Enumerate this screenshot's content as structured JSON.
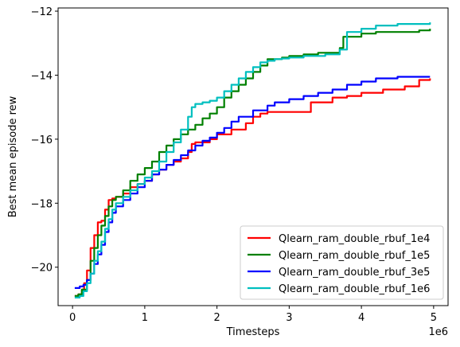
{
  "chart_data": {
    "type": "line",
    "title": "",
    "xlabel": "Timesteps",
    "ylabel": "Best mean episode rew",
    "x_offset_label": "1e6",
    "xlim": [
      -0.2,
      5.2
    ],
    "ylim": [
      -21.2,
      -11.9
    ],
    "x_ticks": [
      0,
      1,
      2,
      3,
      4,
      5
    ],
    "x_tick_labels": [
      "0",
      "1",
      "2",
      "3",
      "4",
      "5"
    ],
    "y_ticks": [
      -20,
      -18,
      -16,
      -14,
      -12
    ],
    "y_tick_labels": [
      "−20",
      "−18",
      "−16",
      "−14",
      "−12"
    ],
    "grid": false,
    "legend_position": "bottom-right",
    "series": [
      {
        "name": "Qlearn_ram_double_rbuf_1e4",
        "color": "#ff0000",
        "x": [
          0.03,
          0.08,
          0.13,
          0.16,
          0.2,
          0.25,
          0.3,
          0.35,
          0.4,
          0.45,
          0.5,
          0.55,
          0.6,
          0.7,
          0.8,
          0.9,
          1.0,
          1.1,
          1.2,
          1.3,
          1.4,
          1.5,
          1.6,
          1.65,
          1.7,
          1.9,
          2.0,
          2.2,
          2.4,
          2.5,
          2.6,
          2.7,
          3.0,
          3.3,
          3.6,
          3.8,
          4.0,
          4.3,
          4.6,
          4.8,
          4.95
        ],
        "y": [
          -20.9,
          -20.85,
          -20.7,
          -20.5,
          -20.1,
          -19.4,
          -19.0,
          -18.6,
          -18.55,
          -18.2,
          -17.9,
          -17.85,
          -17.8,
          -17.7,
          -17.5,
          -17.4,
          -17.3,
          -17.1,
          -16.95,
          -16.8,
          -16.7,
          -16.6,
          -16.4,
          -16.15,
          -16.1,
          -16.0,
          -15.85,
          -15.7,
          -15.5,
          -15.3,
          -15.2,
          -15.15,
          -15.15,
          -14.85,
          -14.7,
          -14.65,
          -14.55,
          -14.45,
          -14.35,
          -14.15,
          -14.1
        ]
      },
      {
        "name": "Qlearn_ram_double_rbuf_1e5",
        "color": "#008000",
        "x": [
          0.03,
          0.08,
          0.13,
          0.2,
          0.25,
          0.3,
          0.35,
          0.4,
          0.45,
          0.5,
          0.55,
          0.6,
          0.7,
          0.8,
          0.9,
          1.0,
          1.1,
          1.2,
          1.3,
          1.4,
          1.5,
          1.6,
          1.7,
          1.8,
          1.9,
          2.0,
          2.1,
          2.2,
          2.3,
          2.4,
          2.5,
          2.6,
          2.7,
          2.9,
          3.0,
          3.2,
          3.4,
          3.7,
          3.75,
          4.0,
          4.2,
          4.5,
          4.8,
          4.95
        ],
        "y": [
          -20.9,
          -20.85,
          -20.7,
          -20.4,
          -19.8,
          -19.4,
          -19.0,
          -18.7,
          -18.4,
          -18.1,
          -17.9,
          -17.8,
          -17.6,
          -17.3,
          -17.1,
          -16.9,
          -16.7,
          -16.4,
          -16.2,
          -16.0,
          -15.85,
          -15.7,
          -15.55,
          -15.35,
          -15.2,
          -15.0,
          -14.7,
          -14.5,
          -14.3,
          -14.1,
          -13.9,
          -13.7,
          -13.5,
          -13.45,
          -13.4,
          -13.35,
          -13.3,
          -13.15,
          -12.8,
          -12.7,
          -12.65,
          -12.65,
          -12.6,
          -12.55
        ]
      },
      {
        "name": "Qlearn_ram_double_rbuf_3e5",
        "color": "#0000ff",
        "x": [
          0.03,
          0.1,
          0.15,
          0.2,
          0.25,
          0.3,
          0.35,
          0.4,
          0.45,
          0.5,
          0.55,
          0.6,
          0.7,
          0.8,
          0.9,
          1.0,
          1.1,
          1.2,
          1.3,
          1.4,
          1.5,
          1.6,
          1.7,
          1.8,
          1.9,
          2.0,
          2.1,
          2.2,
          2.3,
          2.5,
          2.7,
          2.8,
          3.0,
          3.2,
          3.4,
          3.6,
          3.8,
          4.0,
          4.2,
          4.5,
          4.8,
          4.95
        ],
        "y": [
          -20.65,
          -20.6,
          -20.55,
          -20.4,
          -20.2,
          -19.9,
          -19.6,
          -19.3,
          -18.9,
          -18.6,
          -18.3,
          -18.1,
          -17.9,
          -17.7,
          -17.5,
          -17.3,
          -17.1,
          -16.95,
          -16.8,
          -16.65,
          -16.5,
          -16.35,
          -16.2,
          -16.05,
          -15.95,
          -15.8,
          -15.65,
          -15.45,
          -15.3,
          -15.1,
          -14.95,
          -14.85,
          -14.75,
          -14.65,
          -14.55,
          -14.45,
          -14.3,
          -14.2,
          -14.1,
          -14.05,
          -14.05,
          -14.05
        ]
      },
      {
        "name": "Qlearn_ram_double_rbuf_1e6",
        "color": "#00bfbf",
        "x": [
          0.03,
          0.1,
          0.15,
          0.2,
          0.25,
          0.3,
          0.35,
          0.4,
          0.45,
          0.5,
          0.55,
          0.6,
          0.7,
          0.8,
          0.9,
          1.0,
          1.1,
          1.2,
          1.3,
          1.4,
          1.5,
          1.6,
          1.65,
          1.7,
          1.8,
          1.9,
          2.0,
          2.1,
          2.2,
          2.3,
          2.4,
          2.5,
          2.6,
          2.7,
          2.8,
          2.9,
          3.0,
          3.2,
          3.5,
          3.7,
          3.8,
          4.0,
          4.2,
          4.5,
          4.95
        ],
        "y": [
          -20.95,
          -20.9,
          -20.75,
          -20.5,
          -20.2,
          -19.8,
          -19.5,
          -19.2,
          -18.8,
          -18.5,
          -18.2,
          -18.0,
          -17.8,
          -17.6,
          -17.4,
          -17.2,
          -17.0,
          -16.7,
          -16.4,
          -16.1,
          -15.7,
          -15.3,
          -15.0,
          -14.9,
          -14.85,
          -14.8,
          -14.7,
          -14.5,
          -14.3,
          -14.1,
          -13.9,
          -13.75,
          -13.6,
          -13.55,
          -13.5,
          -13.48,
          -13.45,
          -13.4,
          -13.35,
          -13.2,
          -12.65,
          -12.55,
          -12.45,
          -12.4,
          -12.35
        ]
      }
    ]
  }
}
